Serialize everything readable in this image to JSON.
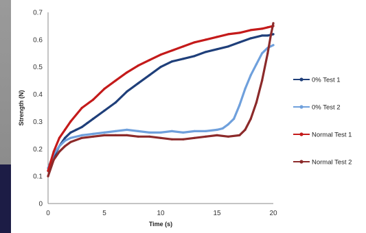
{
  "chart_data": {
    "type": "line",
    "title": "",
    "xlabel": "Time (s)",
    "ylabel": "Strength (N)",
    "xlim": [
      0,
      20
    ],
    "ylim": [
      0,
      0.7
    ],
    "x_ticks": [
      "0",
      "5",
      "10",
      "15",
      "20"
    ],
    "y_ticks": [
      "0",
      "0.1",
      "0.2",
      "0.3",
      "0.4",
      "0.5",
      "0.6",
      "0.7"
    ],
    "grid": false,
    "legend_position": "right",
    "series": [
      {
        "name": "0% Test 1",
        "color": "#1f3f7a",
        "x": [
          0,
          0.5,
          1,
          1.5,
          2,
          2.5,
          3,
          3.5,
          4,
          5,
          6,
          7,
          8,
          9,
          10,
          11,
          12,
          13,
          14,
          15,
          16,
          17,
          18,
          19,
          19.5,
          20
        ],
        "y": [
          0.12,
          0.17,
          0.21,
          0.24,
          0.26,
          0.27,
          0.28,
          0.295,
          0.31,
          0.34,
          0.37,
          0.41,
          0.44,
          0.47,
          0.5,
          0.52,
          0.53,
          0.54,
          0.555,
          0.565,
          0.575,
          0.59,
          0.605,
          0.615,
          0.615,
          0.62
        ]
      },
      {
        "name": "0% Test 2",
        "color": "#6fa0dc",
        "x": [
          0,
          0.5,
          1,
          1.5,
          2,
          3,
          4,
          5,
          6,
          7,
          8,
          9,
          10,
          11,
          12,
          13,
          14,
          15,
          15.5,
          16,
          16.5,
          17,
          17.5,
          18,
          18.5,
          19,
          19.5,
          20
        ],
        "y": [
          0.13,
          0.18,
          0.21,
          0.23,
          0.24,
          0.25,
          0.255,
          0.26,
          0.265,
          0.27,
          0.265,
          0.26,
          0.26,
          0.265,
          0.26,
          0.265,
          0.265,
          0.27,
          0.275,
          0.29,
          0.31,
          0.36,
          0.42,
          0.47,
          0.51,
          0.55,
          0.57,
          0.58
        ]
      },
      {
        "name": "Normal Test 1",
        "color": "#c41a1a",
        "x": [
          0,
          0.5,
          1,
          1.5,
          2,
          3,
          4,
          5,
          6,
          7,
          8,
          9,
          10,
          11,
          12,
          13,
          14,
          15,
          16,
          17,
          18,
          19,
          19.5,
          20
        ],
        "y": [
          0.12,
          0.19,
          0.24,
          0.27,
          0.3,
          0.35,
          0.38,
          0.42,
          0.45,
          0.48,
          0.505,
          0.525,
          0.545,
          0.56,
          0.575,
          0.59,
          0.6,
          0.61,
          0.62,
          0.625,
          0.635,
          0.64,
          0.645,
          0.65
        ]
      },
      {
        "name": "Normal Test 2",
        "color": "#8c2a2a",
        "x": [
          0,
          0.5,
          1,
          1.5,
          2,
          3,
          4,
          5,
          6,
          7,
          8,
          9,
          10,
          11,
          12,
          13,
          14,
          15,
          16,
          17,
          17.5,
          18,
          18.5,
          19,
          19.5,
          19.8,
          20
        ],
        "y": [
          0.1,
          0.16,
          0.19,
          0.21,
          0.225,
          0.24,
          0.245,
          0.25,
          0.25,
          0.25,
          0.245,
          0.245,
          0.24,
          0.235,
          0.235,
          0.24,
          0.245,
          0.25,
          0.245,
          0.25,
          0.27,
          0.31,
          0.37,
          0.45,
          0.55,
          0.62,
          0.66
        ]
      }
    ]
  }
}
